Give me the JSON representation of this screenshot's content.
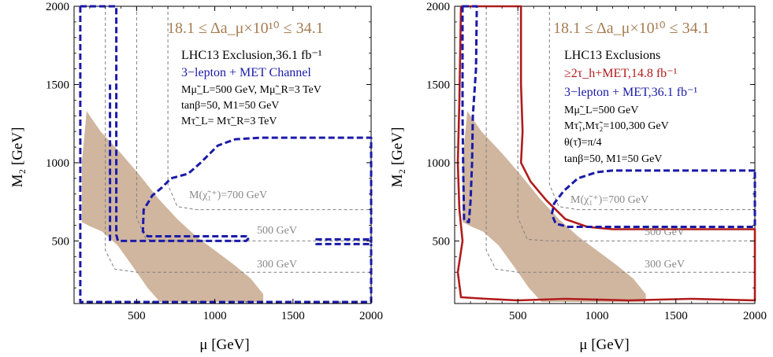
{
  "chart_data": [
    {
      "type": "area",
      "xlabel": "μ [GeV]",
      "ylabel": "M₂ [GeV]",
      "xlim": [
        100,
        2000
      ],
      "ylim": [
        100,
        2000
      ],
      "x_ticks": [
        "500",
        "1000",
        "1500",
        "2000"
      ],
      "y_ticks": [
        "500",
        "1000",
        "1500",
        "2000"
      ],
      "series": [
        {
          "name": "18.1 ≤ Δa_μ×10¹⁰ ≤ 34.1",
          "kind": "filled_region",
          "color": "#c8a98e",
          "points": [
            [
              180,
              1330
            ],
            [
              270,
              1200
            ],
            [
              400,
              1060
            ],
            [
              520,
              920
            ],
            [
              640,
              770
            ],
            [
              760,
              640
            ],
            [
              880,
              530
            ],
            [
              1000,
              440
            ],
            [
              1120,
              350
            ],
            [
              1230,
              260
            ],
            [
              1310,
              160
            ],
            [
              1310,
              110
            ],
            [
              650,
              110
            ],
            [
              570,
              200
            ],
            [
              480,
              330
            ],
            [
              380,
              470
            ],
            [
              280,
              560
            ],
            [
              210,
              590
            ],
            [
              150,
              620
            ],
            [
              150,
              1000
            ]
          ]
        },
        {
          "name": "3-lepton + MET Channel",
          "kind": "exclusion_contour",
          "color": "#1a1aa8",
          "dash": true,
          "segments": [
            [
              [
                140,
                2000
              ],
              [
                370,
                2000
              ],
              [
                370,
                540
              ],
              [
                380,
                500
              ],
              [
                1200,
                500
              ],
              [
                1220,
                520
              ],
              [
                1200,
                530
              ],
              [
                570,
                530
              ],
              [
                540,
                560
              ],
              [
                545,
                700
              ],
              [
                570,
                740
              ],
              [
                600,
                790
              ],
              [
                660,
                840
              ],
              [
                720,
                900
              ],
              [
                830,
                930
              ],
              [
                910,
                1000
              ],
              [
                970,
                1060
              ],
              [
                1020,
                1110
              ],
              [
                1130,
                1150
              ],
              [
                1300,
                1160
              ],
              [
                2000,
                1160
              ],
              [
                2000,
                480
              ],
              [
                1650,
                480
              ],
              [
                1650,
                510
              ],
              [
                2000,
                510
              ]
            ],
            [
              [
                140,
                2000
              ],
              [
                140,
                110
              ],
              [
                2000,
                110
              ],
              [
                2000,
                480
              ]
            ],
            [
              [
                330,
                500
              ],
              [
                330,
                1500
              ]
            ]
          ]
        },
        {
          "name": "M(χ̃₁⁺) contours",
          "kind": "reference_lines",
          "color": "#808080",
          "dash": true,
          "lines": [
            {
              "label": "M(χ̃₁⁺)=700 GeV",
              "points": [
                [
                  700,
                  2000
                ],
                [
                  700,
                  860
                ],
                [
                  760,
                  720
                ],
                [
                  880,
                  700
                ],
                [
                  2000,
                  700
                ]
              ]
            },
            {
              "label": "500 GeV",
              "points": [
                [
                  500,
                  2000
                ],
                [
                  500,
                  650
                ],
                [
                  560,
                  510
                ],
                [
                  700,
                  500
                ],
                [
                  2000,
                  500
                ]
              ]
            },
            {
              "label": "300 GeV",
              "points": [
                [
                  300,
                  2000
                ],
                [
                  300,
                  440
                ],
                [
                  360,
                  320
                ],
                [
                  500,
                  300
                ],
                [
                  2000,
                  300
                ]
              ]
            }
          ]
        }
      ],
      "annotations": {
        "band": "18.1 ≤ Δa_μ×10¹⁰ ≤ 34.1",
        "line1": "LHC13 Exclusion,36.1 fb⁻¹",
        "line2": "3−lepton + MET Channel",
        "line3": "Mμ̃_L=500 GeV, Mμ̃_R=3 TeV",
        "line4": "tanβ=50, M1=50 GeV",
        "line5": "Mτ̃_L= Mτ̃_R=3 TeV",
        "label_700": "M(χ̃₁⁺)=700 GeV",
        "label_500": "500 GeV",
        "label_300": "300 GeV"
      }
    },
    {
      "type": "area",
      "xlabel": "μ [GeV]",
      "ylabel": "M₂ [GeV]",
      "xlim": [
        100,
        2000
      ],
      "ylim": [
        100,
        2000
      ],
      "x_ticks": [
        "500",
        "1000",
        "1500",
        "2000"
      ],
      "y_ticks": [
        "500",
        "1000",
        "1500",
        "2000"
      ],
      "series": [
        {
          "name": "18.1 ≤ Δa_μ×10¹⁰ ≤ 34.1",
          "kind": "filled_region",
          "color": "#c8a98e",
          "points": [
            [
              180,
              1330
            ],
            [
              270,
              1200
            ],
            [
              400,
              1060
            ],
            [
              520,
              920
            ],
            [
              640,
              770
            ],
            [
              760,
              640
            ],
            [
              880,
              530
            ],
            [
              1000,
              440
            ],
            [
              1120,
              350
            ],
            [
              1230,
              260
            ],
            [
              1310,
              160
            ],
            [
              1310,
              110
            ],
            [
              650,
              110
            ],
            [
              570,
              200
            ],
            [
              480,
              330
            ],
            [
              380,
              470
            ],
            [
              280,
              560
            ],
            [
              210,
              590
            ],
            [
              150,
              620
            ],
            [
              150,
              1000
            ]
          ]
        },
        {
          "name": "≥2τ_h+MET,14.8 fb⁻¹",
          "kind": "exclusion_contour",
          "color": "#b01c1c",
          "dash": false,
          "segments": [
            [
              [
                140,
                2000
              ],
              [
                520,
                2000
              ],
              [
                520,
                1500
              ],
              [
                530,
                1200
              ],
              [
                520,
                1000
              ],
              [
                580,
                880
              ],
              [
                680,
                760
              ],
              [
                800,
                640
              ],
              [
                940,
                590
              ],
              [
                1100,
                575
              ],
              [
                2000,
                575
              ],
              [
                2000,
                120
              ],
              [
                1600,
                130
              ],
              [
                1200,
                120
              ],
              [
                800,
                130
              ],
              [
                500,
                120
              ],
              [
                300,
                130
              ],
              [
                140,
                140
              ],
              [
                120,
                300
              ],
              [
                150,
                500
              ],
              [
                130,
                700
              ],
              [
                120,
                1000
              ],
              [
                130,
                1400
              ],
              [
                140,
                2000
              ]
            ]
          ]
        },
        {
          "name": "3-lepton + MET,36.1 fb⁻¹",
          "kind": "exclusion_contour",
          "color": "#1a1aa8",
          "dash": true,
          "segments": [
            [
              [
                150,
                2000
              ],
              [
                240,
                2000
              ],
              [
                235,
                1600
              ],
              [
                215,
                1300
              ],
              [
                210,
                1000
              ],
              [
                200,
                750
              ],
              [
                190,
                620
              ],
              [
                160,
                630
              ],
              [
                155,
                900
              ],
              [
                150,
                1300
              ],
              [
                150,
                2000
              ]
            ],
            [
              [
                2000,
                950
              ],
              [
                1100,
                950
              ],
              [
                1000,
                940
              ],
              [
                880,
                900
              ],
              [
                790,
                820
              ],
              [
                730,
                740
              ],
              [
                715,
                670
              ],
              [
                740,
                610
              ],
              [
                820,
                590
              ],
              [
                2000,
                590
              ],
              [
                2000,
                950
              ]
            ]
          ]
        },
        {
          "name": "M(χ̃₁⁺) contours",
          "kind": "reference_lines",
          "color": "#808080",
          "dash": true,
          "lines": [
            {
              "label": "M(χ̃₁⁺)=700 GeV",
              "points": [
                [
                  700,
                  2000
                ],
                [
                  700,
                  860
                ],
                [
                  760,
                  720
                ],
                [
                  880,
                  700
                ],
                [
                  2000,
                  700
                ]
              ]
            },
            {
              "label": "500 GeV",
              "points": [
                [
                  500,
                  2000
                ],
                [
                  500,
                  650
                ],
                [
                  560,
                  510
                ],
                [
                  700,
                  500
                ],
                [
                  2000,
                  500
                ]
              ]
            },
            {
              "label": "300 GeV",
              "points": [
                [
                  300,
                  2000
                ],
                [
                  300,
                  440
                ],
                [
                  360,
                  320
                ],
                [
                  500,
                  300
                ],
                [
                  2000,
                  300
                ]
              ]
            }
          ]
        }
      ],
      "annotations": {
        "band": "18.1 ≤ Δa_μ×10¹⁰ ≤ 34.1",
        "line1": "LHC13 Exclusions",
        "line2": "≥2τ_h+MET,14.8 fb⁻¹",
        "line3": "3−lepton + MET,36.1 fb⁻¹",
        "line4": "Mμ̃_L=500 GeV",
        "line5": "Mτ̃₁,Mτ̃₂=100,300 GeV",
        "line6": "θ(τ̃)=π/4",
        "line7": "tanβ=50, M1=50 GeV",
        "label_700": "M(χ̃₁⁺)=700 GeV",
        "label_500": "500 GeV",
        "label_300": "300 GeV"
      }
    }
  ]
}
